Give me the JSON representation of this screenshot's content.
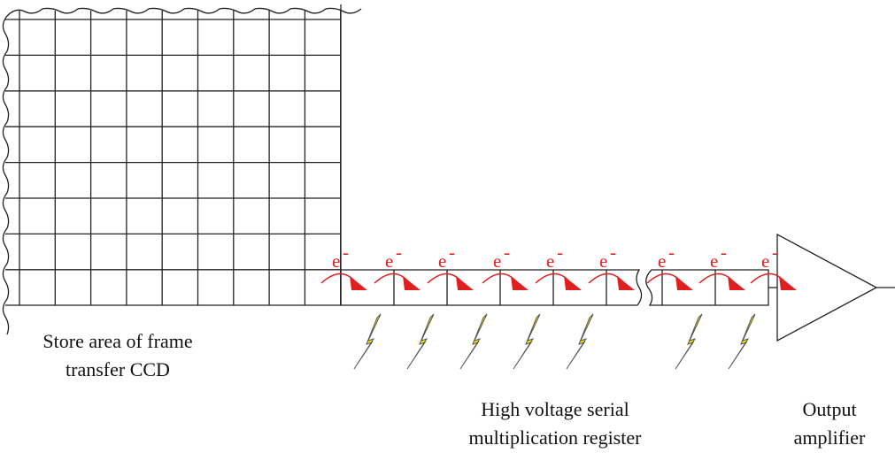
{
  "store_label": [
    "Store area of frame",
    "transfer CCD"
  ],
  "register_label": [
    "High voltage serial",
    "multiplication register"
  ],
  "amplifier_label": [
    "Output",
    "amplifier"
  ],
  "charge_labels": [
    {
      "symbol": "e",
      "sign": "-"
    },
    {
      "symbol": "e",
      "sign": "-"
    },
    {
      "symbol": "e",
      "sign": "-"
    },
    {
      "symbol": "e",
      "sign": "-"
    },
    {
      "symbol": "e",
      "sign": "-"
    },
    {
      "symbol": "e",
      "sign": "-"
    },
    {
      "symbol": "e",
      "sign": "-"
    },
    {
      "symbol": "e",
      "sign": "-"
    },
    {
      "symbol": "e",
      "sign": "-"
    }
  ]
}
